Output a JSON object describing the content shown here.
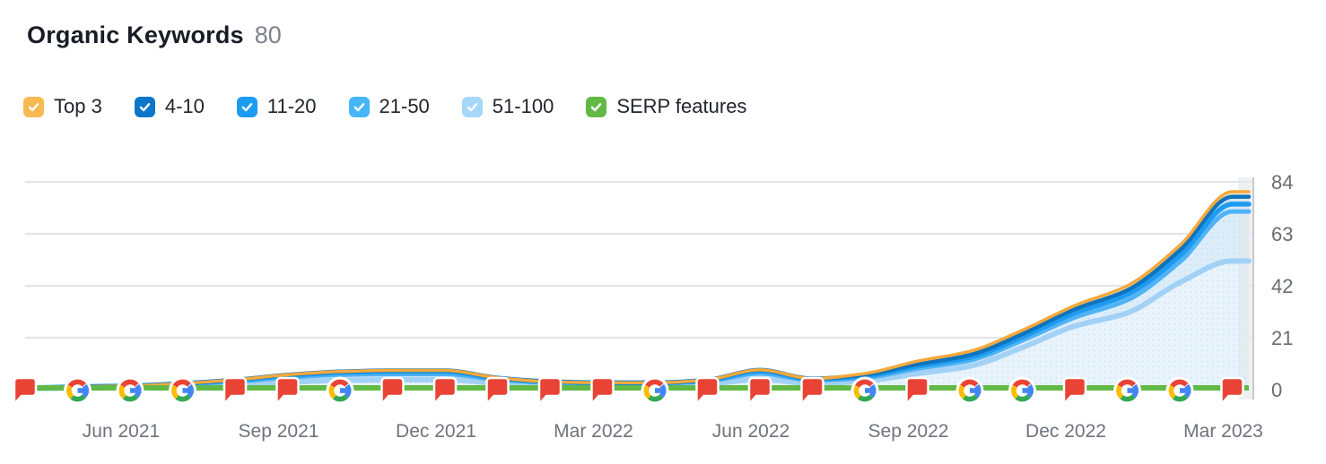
{
  "header": {
    "title": "Organic Keywords",
    "count": "80"
  },
  "legend": {
    "items": [
      {
        "label": "Top 3",
        "color": "#F7BA50",
        "checked": true
      },
      {
        "label": "4-10",
        "color": "#0C77C8",
        "checked": true
      },
      {
        "label": "11-20",
        "color": "#1D9BF0",
        "checked": true
      },
      {
        "label": "21-50",
        "color": "#45B6F7",
        "checked": true
      },
      {
        "label": "51-100",
        "color": "#A6D6F8",
        "checked": true
      },
      {
        "label": "SERP features",
        "color": "#62B946",
        "checked": true
      }
    ]
  },
  "chart_data": {
    "type": "area",
    "title": "Organic Keywords",
    "stacking": "bottom_to_top_is_last_series_first",
    "ylim": [
      0,
      84
    ],
    "y_ticks": [
      84,
      63,
      42,
      21,
      0
    ],
    "grid": true,
    "legend_position": "top",
    "categories": [
      "Apr 2021",
      "May 2021",
      "Jun 2021",
      "Jul 2021",
      "Aug 2021",
      "Sep 2021",
      "Oct 2021",
      "Nov 2021",
      "Dec 2021",
      "Jan 2022",
      "Feb 2022",
      "Mar 2022",
      "Apr 2022",
      "May 2022",
      "Jun 2022",
      "Jul 2022",
      "Aug 2022",
      "Sep 2022",
      "Oct 2022",
      "Nov 2022",
      "Dec 2022",
      "Jan 2023",
      "Feb 2023",
      "Mar 2023"
    ],
    "x_tick_labels": [
      {
        "label": "Jun 2021",
        "month_index": 2
      },
      {
        "label": "Sep 2021",
        "month_index": 5
      },
      {
        "label": "Dec 2021",
        "month_index": 8
      },
      {
        "label": "Mar 2022",
        "month_index": 11
      },
      {
        "label": "Jun 2022",
        "month_index": 14
      },
      {
        "label": "Sep 2022",
        "month_index": 17
      },
      {
        "label": "Dec 2022",
        "month_index": 20
      },
      {
        "label": "Mar 2023",
        "month_index": 23
      }
    ],
    "series": [
      {
        "name": "Top 3",
        "color": "#F5A93C",
        "fill": "#FCEBCD",
        "values": [
          0,
          0,
          0,
          0,
          0,
          0,
          0,
          0,
          0,
          0,
          0,
          0,
          0,
          0,
          0,
          0,
          0.5,
          1.2,
          1.5,
          1.5,
          1.5,
          1.8,
          2,
          2
        ]
      },
      {
        "name": "4-10",
        "color": "#0E74BD",
        "fill": "#CFE5F7",
        "values": [
          0,
          0,
          0,
          0,
          0.2,
          0.3,
          0.4,
          0.5,
          0.5,
          0.2,
          0,
          0,
          0,
          0.2,
          0.5,
          0.2,
          0.5,
          0.8,
          1,
          1.2,
          1.5,
          1.8,
          2.2,
          3
        ]
      },
      {
        "name": "11-20",
        "color": "#1E9BF0",
        "fill": "#D2E9FB",
        "values": [
          0,
          0.2,
          0.2,
          0.3,
          0.5,
          0.8,
          0.9,
          1,
          1,
          0.6,
          0.4,
          0.3,
          0.3,
          0.4,
          1,
          0.5,
          0.7,
          1,
          1.2,
          1.4,
          1.8,
          2.2,
          2.5,
          3
        ]
      },
      {
        "name": "21-50",
        "color": "#4FB3F5",
        "fill": "#DCEDFA",
        "values": [
          0.3,
          0.4,
          0.5,
          0.9,
          1.3,
          1.9,
          2.2,
          2.3,
          2.3,
          1.4,
          1,
          0.9,
          0.9,
          1.2,
          2.3,
          1.3,
          1.3,
          2,
          2.3,
          2.9,
          3.5,
          5.2,
          8.3,
          20
        ]
      },
      {
        "name": "51-100",
        "color": "#A3D1F5",
        "fill": "#E8F3FC",
        "values": [
          0.4,
          0.6,
          0.8,
          1.3,
          2,
          3,
          3.8,
          4,
          4,
          2.6,
          1.8,
          1.6,
          1.6,
          2.2,
          4.2,
          2.5,
          3.5,
          6.5,
          9.5,
          17,
          25.7,
          31,
          43.3,
          52
        ]
      }
    ],
    "serp_features": {
      "name": "SERP features",
      "color": "#61B946",
      "flat_value": 0.8
    },
    "notes": [
      {
        "month": "Apr 2021",
        "type": "flag"
      },
      {
        "month": "May 2021",
        "type": "google-update"
      },
      {
        "month": "Jun 2021",
        "type": "google-update"
      },
      {
        "month": "Jul 2021",
        "type": "google-update"
      },
      {
        "month": "Aug 2021",
        "type": "flag"
      },
      {
        "month": "Sep 2021",
        "type": "flag"
      },
      {
        "month": "Oct 2021",
        "type": "google-update"
      },
      {
        "month": "Nov 2021",
        "type": "flag"
      },
      {
        "month": "Dec 2021",
        "type": "flag"
      },
      {
        "month": "Jan 2022",
        "type": "flag"
      },
      {
        "month": "Feb 2022",
        "type": "flag"
      },
      {
        "month": "Mar 2022",
        "type": "flag"
      },
      {
        "month": "Apr 2022",
        "type": "google-update"
      },
      {
        "month": "May 2022",
        "type": "flag"
      },
      {
        "month": "Jun 2022",
        "type": "flag"
      },
      {
        "month": "Jul 2022",
        "type": "flag"
      },
      {
        "month": "Aug 2022",
        "type": "google-update"
      },
      {
        "month": "Sep 2022",
        "type": "flag"
      },
      {
        "month": "Oct 2022",
        "type": "google-update"
      },
      {
        "month": "Nov 2022",
        "type": "google-update"
      },
      {
        "month": "Dec 2022",
        "type": "flag"
      },
      {
        "month": "Jan 2023",
        "type": "google-update"
      },
      {
        "month": "Feb 2023",
        "type": "google-update"
      },
      {
        "month": "Mar 2023",
        "type": "flag"
      }
    ],
    "colors": {
      "grid": "#E3E4EA",
      "axis_text": "#686D74",
      "current_period_bar": "#E3E6EA",
      "note_flag": "#E94335",
      "google": {
        "blue": "#4285F4",
        "red": "#EA4335",
        "yellow": "#FBBC05",
        "green": "#34A853"
      }
    }
  }
}
